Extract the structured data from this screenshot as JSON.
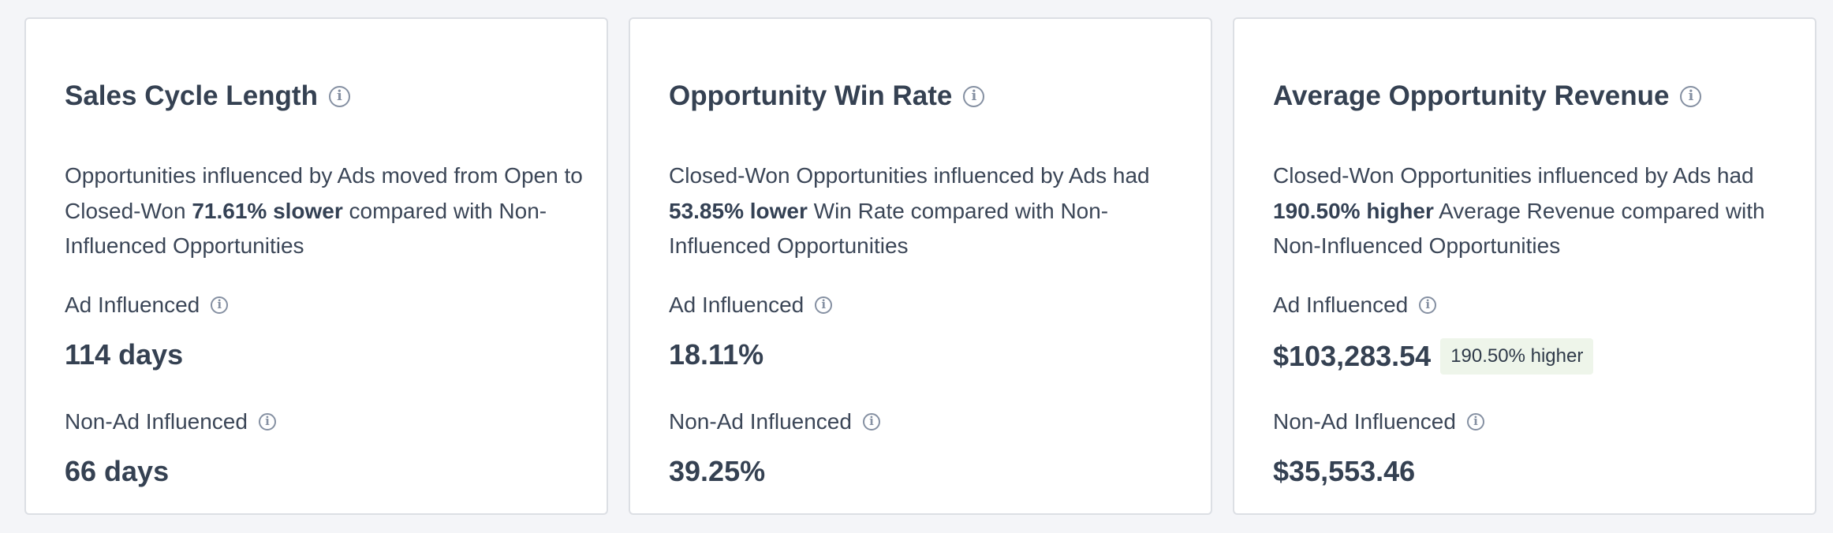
{
  "cards": [
    {
      "title": "Sales Cycle Length",
      "desc_pre": "Opportunities influenced by Ads moved from Open to Closed-Won ",
      "desc_bold": "71.61% slower",
      "desc_post": " compared with Non-Influenced Opportunities",
      "ad_label": "Ad Influenced",
      "ad_value": "114 days",
      "non_label": "Non-Ad Influenced",
      "non_value": "66 days"
    },
    {
      "title": "Opportunity Win Rate",
      "desc_pre": "Closed-Won Opportunities influenced by Ads had ",
      "desc_bold": "53.85% lower",
      "desc_post": " Win Rate compared with Non-Influenced Opportunities",
      "ad_label": "Ad Influenced",
      "ad_value": "18.11%",
      "non_label": "Non-Ad Influenced",
      "non_value": "39.25%"
    },
    {
      "title": "Average Opportunity Revenue",
      "desc_pre": "Closed-Won Opportunities influenced by Ads had ",
      "desc_bold": "190.50% higher",
      "desc_post": " Average Revenue compared with Non-Influenced Opportunities",
      "ad_label": "Ad Influenced",
      "ad_value": "$103,283.54",
      "ad_badge": "190.50% higher",
      "non_label": "Non-Ad Influenced",
      "non_value": "$35,553.46"
    }
  ],
  "colors": {
    "badge_bg": "#eef5ea",
    "text": "#344154",
    "icon": "#8590a2"
  },
  "icons": {
    "info": "info-circle-icon"
  }
}
